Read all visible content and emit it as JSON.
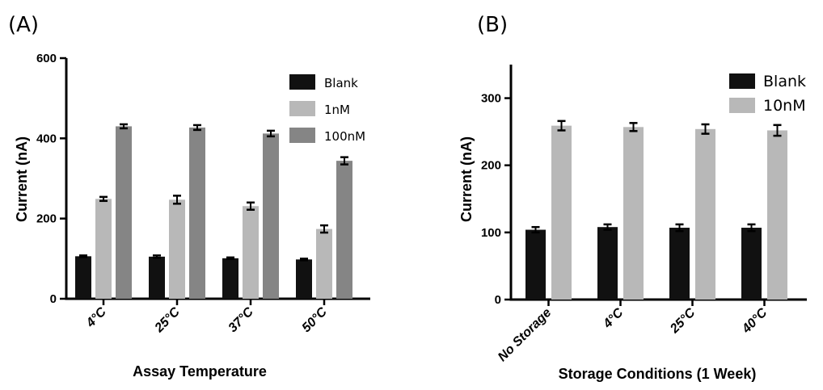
{
  "chart_data": [
    {
      "panel_label": "(A)",
      "type": "bar",
      "xlabel": "Assay Temperature",
      "ylabel": "Current (nA)",
      "ylim": [
        0,
        600
      ],
      "yticks": [
        0,
        200,
        400,
        600
      ],
      "categories": [
        "4°C",
        "25°C",
        "37°C",
        "50°C"
      ],
      "series": [
        {
          "name": "Blank",
          "color": "#111111",
          "values": [
            106,
            105,
            101,
            98
          ],
          "errors": [
            2,
            3,
            2,
            2
          ]
        },
        {
          "name": "1nM",
          "color": "#b8b8b8",
          "values": [
            249,
            247,
            231,
            174
          ],
          "errors": [
            5,
            10,
            9,
            9
          ]
        },
        {
          "name": "100nM",
          "color": "#858585",
          "values": [
            430,
            427,
            412,
            344
          ],
          "errors": [
            5,
            6,
            7,
            9
          ]
        }
      ],
      "legend_position": "top-right"
    },
    {
      "panel_label": "(B)",
      "type": "bar",
      "xlabel": "Storage Conditions (1 Week)",
      "ylabel": "Current (nA)",
      "ylim": [
        0,
        350
      ],
      "yticks": [
        0,
        100,
        200,
        300
      ],
      "categories": [
        "No Storage",
        "4°C",
        "25°C",
        "40°C"
      ],
      "series": [
        {
          "name": "Blank",
          "color": "#111111",
          "values": [
            104,
            108,
            107,
            107
          ],
          "errors": [
            4,
            4,
            5,
            5
          ]
        },
        {
          "name": "10nM",
          "color": "#b8b8b8",
          "values": [
            259,
            257,
            254,
            252
          ],
          "errors": [
            7,
            6,
            7,
            8
          ]
        }
      ],
      "legend_position": "top-right"
    }
  ]
}
